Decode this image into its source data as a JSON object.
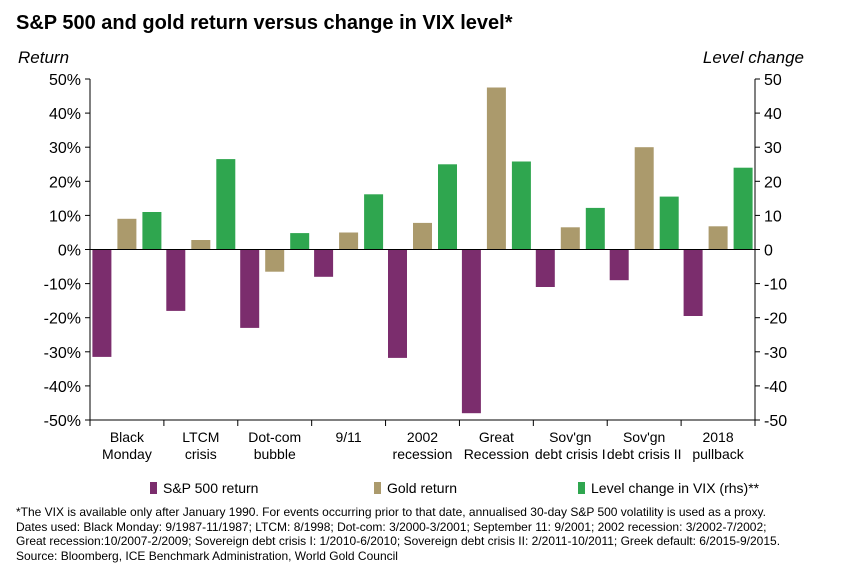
{
  "title": "S&P 500 and gold return versus change in VIX level*",
  "footnotes": [
    "*The VIX is available only after January 1990. For events occurring prior to that date, annualised 30-day S&P 500 volatility is used as a proxy.",
    "Dates used: Black Monday: 9/1987-11/1987; LTCM: 8/1998; Dot-com: 3/2000-3/2001; September 11: 9/2001; 2002 recession: 3/2002-7/2002;",
    "Great recession:10/2007-2/2009; Sovereign debt crisis I: 1/2010-6/2010; Sovereign debt crisis II: 2/2011-10/2011; Greek default: 6/2015-9/2015.",
    "Source: Bloomberg, ICE Benchmark Administration, World Gold Council"
  ],
  "colors": {
    "sp500": "#7b2d6d",
    "gold": "#ab9a6c",
    "vix": "#2fa64f"
  },
  "chart_data": {
    "type": "bar",
    "title": "S&P 500 and gold return versus change in VIX level*",
    "ylabel_left": "Return",
    "ylabel_right": "Level change",
    "categories": [
      [
        "Black",
        "Monday"
      ],
      [
        "LTCM",
        "crisis"
      ],
      [
        "Dot-com",
        "bubble"
      ],
      [
        "9/11"
      ],
      [
        "2002",
        "recession"
      ],
      [
        "Great",
        "Recession"
      ],
      [
        "Sov'gn",
        "debt crisis I"
      ],
      [
        "Sov'gn",
        "debt crisis II"
      ],
      [
        "2018",
        "pullback"
      ]
    ],
    "series": [
      {
        "name": "S&P 500 return",
        "axis": "left",
        "unit": "%",
        "values": [
          -31.5,
          -18.0,
          -23.0,
          -8.0,
          -31.8,
          -48.0,
          -11.0,
          -9.0,
          -19.5
        ]
      },
      {
        "name": "Gold return",
        "axis": "left",
        "unit": "%",
        "values": [
          9.0,
          2.8,
          -6.5,
          5.0,
          7.8,
          47.5,
          6.5,
          30.0,
          6.8
        ]
      },
      {
        "name": "Level change in VIX (rhs)**",
        "axis": "right",
        "unit": "",
        "values": [
          11.0,
          26.5,
          4.8,
          16.2,
          25.0,
          25.8,
          12.2,
          15.5,
          24.0
        ]
      }
    ],
    "ylim_left": [
      -50,
      50
    ],
    "ylim_right": [
      -50,
      50
    ],
    "yticks_left": [
      "50%",
      "40%",
      "30%",
      "20%",
      "10%",
      "0%",
      "-10%",
      "-20%",
      "-30%",
      "-40%",
      "-50%"
    ],
    "yticks_right": [
      "50",
      "40",
      "30",
      "20",
      "10",
      "0",
      "-10",
      "-20",
      "-30",
      "-40",
      "-50"
    ],
    "grid": false,
    "legend_position": "bottom"
  }
}
